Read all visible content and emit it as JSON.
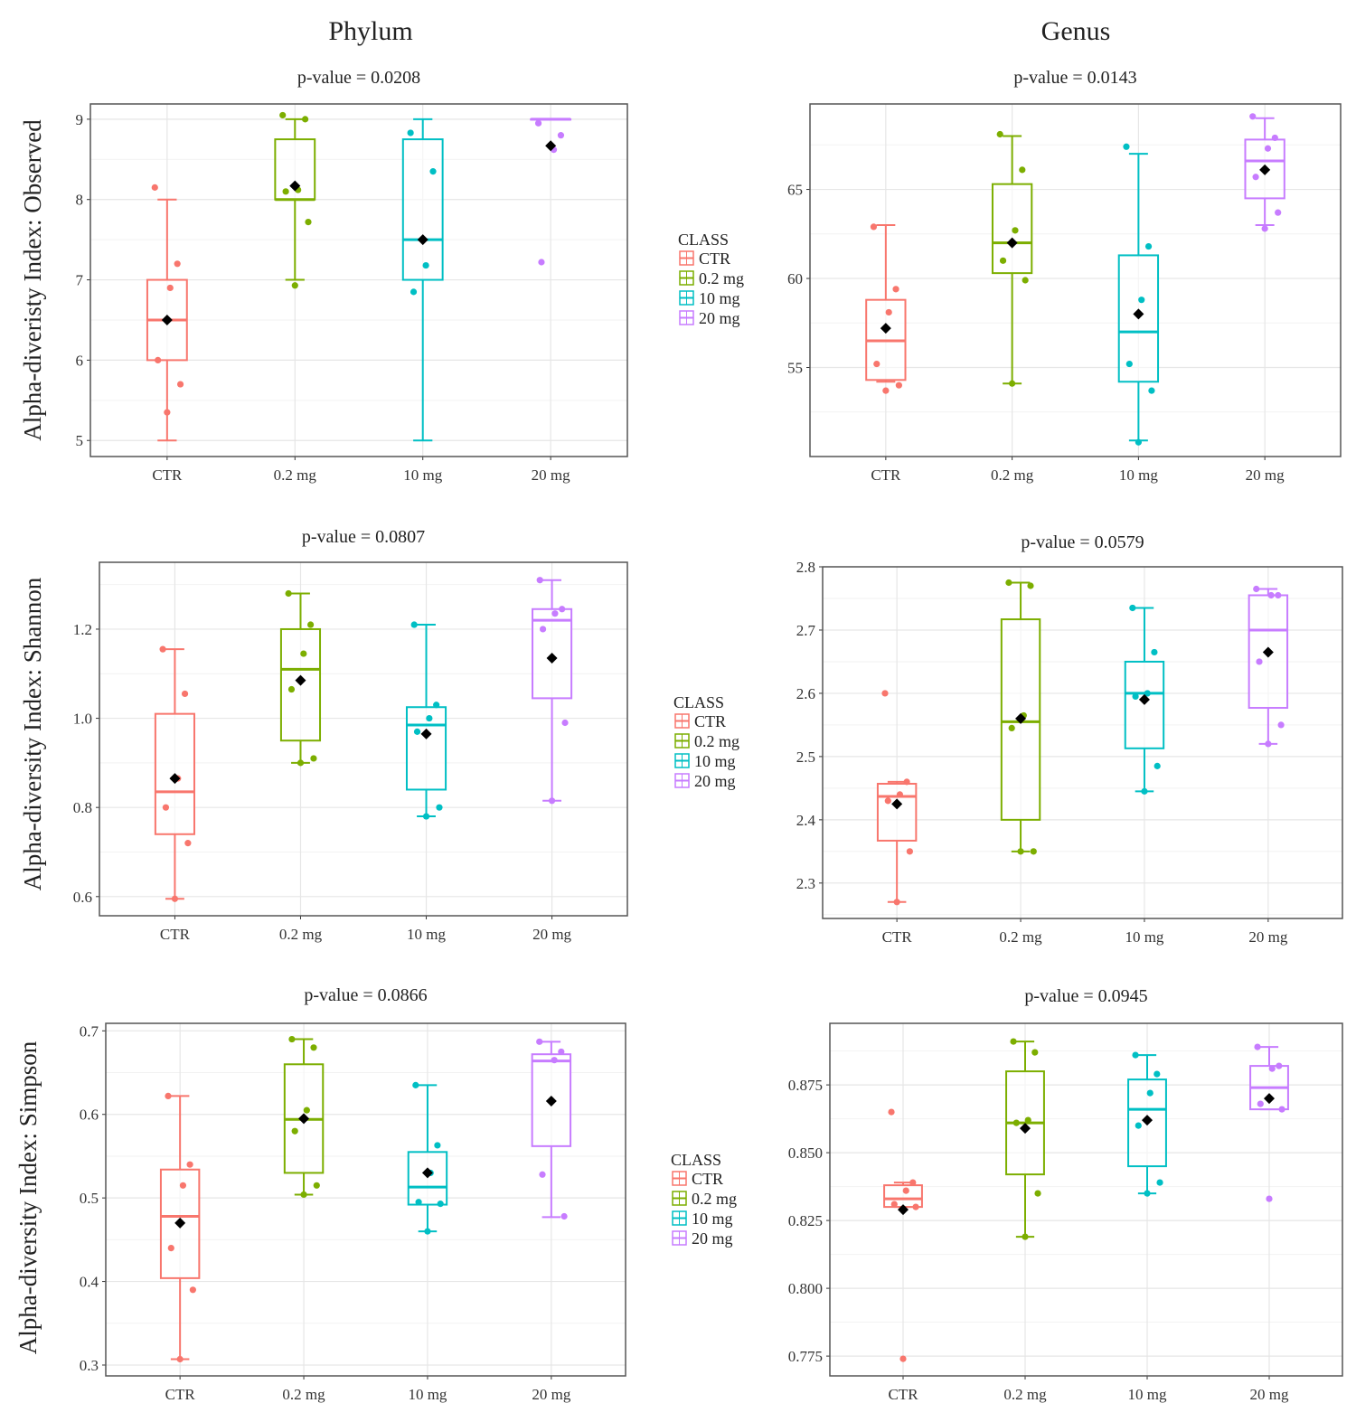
{
  "column_titles": [
    "Phylum",
    "Genus"
  ],
  "legend": {
    "title": "CLASS",
    "items": [
      {
        "label": "CTR",
        "color": "#F8766D"
      },
      {
        "label": "0.2 mg",
        "color": "#7CAE00"
      },
      {
        "label": "10 mg",
        "color": "#00BFC4"
      },
      {
        "label": "20 mg",
        "color": "#C77CFF"
      }
    ]
  },
  "chart_data": [
    {
      "type": "box",
      "column": "Phylum",
      "title": "p-value = 0.0208",
      "ylabel": "Alpha-diveristy Index: Observed",
      "categories": [
        "CTR",
        "0.2 mg",
        "10 mg",
        "20 mg"
      ],
      "ylim": [
        4.8,
        9.19
      ],
      "yticks": [
        5,
        6,
        7,
        8,
        9
      ],
      "ytick_labels": [
        "5",
        "6",
        "7",
        "8",
        "9"
      ],
      "grid": true,
      "boxes": [
        {
          "lower": 5,
          "q1": 6,
          "median": 6.5,
          "q3": 7,
          "upper": 8,
          "mean": 6.5,
          "points": [
            8.15,
            7.2,
            6.9,
            6.0,
            5.7,
            5.35
          ]
        },
        {
          "lower": 7,
          "q1": 8,
          "median": 8,
          "q3": 8.75,
          "upper": 9,
          "mean": 8.17,
          "points": [
            9.05,
            9.0,
            8.12,
            8.1,
            7.72,
            6.93
          ]
        },
        {
          "lower": 5,
          "q1": 7,
          "median": 7.5,
          "q3": 8.75,
          "upper": 9,
          "mean": 7.5,
          "points": [
            8.83,
            8.35,
            7.18,
            6.85
          ]
        },
        {
          "lower": 9,
          "q1": 9,
          "median": 9,
          "q3": 9,
          "upper": 9,
          "mean": 8.67,
          "points": [
            8.95,
            8.8,
            8.62,
            7.22
          ]
        }
      ]
    },
    {
      "type": "box",
      "column": "Genus",
      "title": "p-value = 0.0143",
      "ylabel": "",
      "categories": [
        "CTR",
        "0.2 mg",
        "10 mg",
        "20 mg"
      ],
      "ylim": [
        50.0,
        69.8
      ],
      "yticks": [
        55,
        60,
        65
      ],
      "ytick_labels": [
        "55",
        "60",
        "65"
      ],
      "grid": true,
      "boxes": [
        {
          "lower": 54.2,
          "q1": 54.3,
          "median": 56.5,
          "q3": 58.8,
          "upper": 63,
          "mean": 57.2,
          "points": [
            62.9,
            59.4,
            58.1,
            55.2,
            54.0,
            53.7
          ]
        },
        {
          "lower": 54.1,
          "q1": 60.3,
          "median": 62,
          "q3": 65.3,
          "upper": 68,
          "mean": 62,
          "points": [
            68.1,
            66.1,
            62.7,
            61.0,
            59.9,
            54.1
          ]
        },
        {
          "lower": 50.9,
          "q1": 54.2,
          "median": 57,
          "q3": 61.3,
          "upper": 67,
          "mean": 58,
          "points": [
            67.4,
            61.8,
            58.8,
            55.2,
            53.7,
            50.8
          ]
        },
        {
          "lower": 63,
          "q1": 64.5,
          "median": 66.6,
          "q3": 67.8,
          "upper": 69,
          "mean": 66.1,
          "points": [
            69.1,
            67.9,
            67.3,
            65.7,
            63.7,
            62.8
          ]
        }
      ]
    },
    {
      "type": "box",
      "column": "Phylum",
      "title": "p-value = 0.0807",
      "ylabel": "Alpha-diversity Index: Shannon",
      "categories": [
        "CTR",
        "0.2 mg",
        "10 mg",
        "20 mg"
      ],
      "ylim": [
        0.557,
        1.35
      ],
      "yticks": [
        0.6,
        0.8,
        1.0,
        1.2
      ],
      "ytick_labels": [
        "0.6",
        "0.8",
        "1.0",
        "1.2"
      ],
      "grid": true,
      "boxes": [
        {
          "lower": 0.595,
          "q1": 0.74,
          "median": 0.835,
          "q3": 1.01,
          "upper": 1.155,
          "mean": 0.865,
          "points": [
            1.155,
            1.055,
            0.865,
            0.8,
            0.72,
            0.595
          ]
        },
        {
          "lower": 0.9,
          "q1": 0.95,
          "median": 1.11,
          "q3": 1.2,
          "upper": 1.28,
          "mean": 1.085,
          "points": [
            1.28,
            1.21,
            1.145,
            1.065,
            0.91,
            0.9
          ]
        },
        {
          "lower": 0.78,
          "q1": 0.84,
          "median": 0.985,
          "q3": 1.025,
          "upper": 1.21,
          "mean": 0.965,
          "points": [
            1.21,
            1.03,
            1.0,
            0.97,
            0.8,
            0.78
          ]
        },
        {
          "lower": 0.815,
          "q1": 1.045,
          "median": 1.22,
          "q3": 1.245,
          "upper": 1.31,
          "mean": 1.135,
          "points": [
            1.31,
            1.245,
            1.235,
            1.2,
            0.99,
            0.815
          ]
        }
      ]
    },
    {
      "type": "box",
      "column": "Genus",
      "title": "p-value = 0.0579",
      "ylabel": "",
      "categories": [
        "CTR",
        "0.2 mg",
        "10 mg",
        "20 mg"
      ],
      "ylim": [
        2.244,
        2.8
      ],
      "yticks": [
        2.3,
        2.4,
        2.5,
        2.6,
        2.7,
        2.8
      ],
      "ytick_labels": [
        "2.3",
        "2.4",
        "2.5",
        "2.6",
        "2.7",
        "2.8"
      ],
      "grid": true,
      "boxes": [
        {
          "lower": 2.27,
          "q1": 2.367,
          "median": 2.437,
          "q3": 2.457,
          "upper": 2.46,
          "mean": 2.425,
          "points": [
            2.6,
            2.46,
            2.44,
            2.43,
            2.35,
            2.27
          ]
        },
        {
          "lower": 2.35,
          "q1": 2.4,
          "median": 2.555,
          "q3": 2.717,
          "upper": 2.775,
          "mean": 2.56,
          "points": [
            2.775,
            2.77,
            2.565,
            2.545,
            2.35,
            2.35
          ]
        },
        {
          "lower": 2.445,
          "q1": 2.513,
          "median": 2.6,
          "q3": 2.65,
          "upper": 2.735,
          "mean": 2.59,
          "points": [
            2.735,
            2.665,
            2.6,
            2.595,
            2.485,
            2.445
          ]
        },
        {
          "lower": 2.52,
          "q1": 2.577,
          "median": 2.7,
          "q3": 2.755,
          "upper": 2.765,
          "mean": 2.665,
          "points": [
            2.765,
            2.755,
            2.755,
            2.65,
            2.55,
            2.52
          ]
        }
      ]
    },
    {
      "type": "box",
      "column": "Phylum",
      "title": "p-value = 0.0866",
      "ylabel": "Alpha-diversity Index: Simpson",
      "categories": [
        "CTR",
        "0.2 mg",
        "10 mg",
        "20 mg"
      ],
      "ylim": [
        0.287,
        0.709
      ],
      "yticks": [
        0.3,
        0.4,
        0.5,
        0.6,
        0.7
      ],
      "ytick_labels": [
        "0.3",
        "0.4",
        "0.5",
        "0.6",
        "0.7"
      ],
      "grid": true,
      "boxes": [
        {
          "lower": 0.307,
          "q1": 0.404,
          "median": 0.478,
          "q3": 0.534,
          "upper": 0.622,
          "mean": 0.47,
          "points": [
            0.622,
            0.54,
            0.515,
            0.44,
            0.39,
            0.307
          ]
        },
        {
          "lower": 0.504,
          "q1": 0.53,
          "median": 0.594,
          "q3": 0.66,
          "upper": 0.69,
          "mean": 0.595,
          "points": [
            0.69,
            0.68,
            0.605,
            0.58,
            0.515,
            0.504
          ]
        },
        {
          "lower": 0.46,
          "q1": 0.492,
          "median": 0.513,
          "q3": 0.555,
          "upper": 0.635,
          "mean": 0.53,
          "points": [
            0.635,
            0.563,
            0.53,
            0.495,
            0.493,
            0.46
          ]
        },
        {
          "lower": 0.477,
          "q1": 0.562,
          "median": 0.664,
          "q3": 0.672,
          "upper": 0.687,
          "mean": 0.616,
          "points": [
            0.687,
            0.675,
            0.665,
            0.528,
            0.478
          ]
        }
      ]
    },
    {
      "type": "box",
      "column": "Genus",
      "title": "p-value = 0.0945",
      "ylabel": "",
      "categories": [
        "CTR",
        "0.2 mg",
        "10 mg",
        "20 mg"
      ],
      "ylim": [
        0.7677,
        0.8977
      ],
      "yticks": [
        0.775,
        0.8,
        0.825,
        0.85,
        0.875
      ],
      "ytick_labels": [
        "0.775",
        "0.800",
        "0.825",
        "0.850",
        "0.875"
      ],
      "grid": true,
      "boxes": [
        {
          "lower": 0.83,
          "q1": 0.83,
          "median": 0.833,
          "q3": 0.838,
          "upper": 0.839,
          "mean": 0.829,
          "points": [
            0.865,
            0.839,
            0.836,
            0.831,
            0.83,
            0.774
          ]
        },
        {
          "lower": 0.819,
          "q1": 0.842,
          "median": 0.861,
          "q3": 0.88,
          "upper": 0.891,
          "mean": 0.859,
          "points": [
            0.891,
            0.887,
            0.862,
            0.861,
            0.835,
            0.819
          ]
        },
        {
          "lower": 0.835,
          "q1": 0.845,
          "median": 0.866,
          "q3": 0.877,
          "upper": 0.886,
          "mean": 0.862,
          "points": [
            0.886,
            0.879,
            0.872,
            0.86,
            0.839,
            0.835
          ]
        },
        {
          "lower": 0.866,
          "q1": 0.866,
          "median": 0.874,
          "q3": 0.882,
          "upper": 0.889,
          "mean": 0.87,
          "points": [
            0.889,
            0.882,
            0.881,
            0.868,
            0.866,
            0.833
          ]
        }
      ]
    }
  ]
}
